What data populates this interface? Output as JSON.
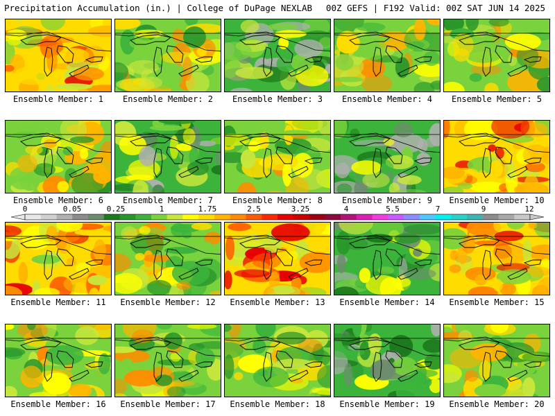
{
  "header": {
    "title_left": "Precipitation Accumulation (in.) | College of DuPage NEXLAB",
    "title_right": "00Z GEFS | F192 Valid: 00Z SAT JUN 14 2025"
  },
  "members": [
    {
      "label": "Ensemble Member: 1",
      "tone": "wet"
    },
    {
      "label": "Ensemble Member: 2",
      "tone": "mixed"
    },
    {
      "label": "Ensemble Member: 3",
      "tone": "dry"
    },
    {
      "label": "Ensemble Member: 4",
      "tone": "mixed"
    },
    {
      "label": "Ensemble Member: 5",
      "tone": "mixed"
    },
    {
      "label": "Ensemble Member: 6",
      "tone": "mixed"
    },
    {
      "label": "Ensemble Member: 7",
      "tone": "dry"
    },
    {
      "label": "Ensemble Member: 8",
      "tone": "mixed"
    },
    {
      "label": "Ensemble Member: 9",
      "tone": "dry"
    },
    {
      "label": "Ensemble Member: 10",
      "tone": "wet"
    },
    {
      "label": "Ensemble Member: 11",
      "tone": "wet"
    },
    {
      "label": "Ensemble Member: 12",
      "tone": "mixed"
    },
    {
      "label": "Ensemble Member: 13",
      "tone": "wet"
    },
    {
      "label": "Ensemble Member: 14",
      "tone": "dry"
    },
    {
      "label": "Ensemble Member: 15",
      "tone": "wet"
    },
    {
      "label": "Ensemble Member: 16",
      "tone": "mixed"
    },
    {
      "label": "Ensemble Member: 17",
      "tone": "mixed"
    },
    {
      "label": "Ensemble Member: 18",
      "tone": "mixed"
    },
    {
      "label": "Ensemble Member: 19",
      "tone": "dry"
    },
    {
      "label": "Ensemble Member: 20",
      "tone": "mixed"
    }
  ],
  "legend": {
    "labels": [
      "0",
      "0.05",
      "0.25",
      "1",
      "1.75",
      "2.5",
      "3.25",
      "4",
      "5.5",
      "7",
      "9",
      "12"
    ],
    "colors": [
      "#e8e8e8",
      "#d0d0d0",
      "#b0b0b0",
      "#8c8c8c",
      "#6e8c6e",
      "#1e7a1e",
      "#2a962a",
      "#3cb43c",
      "#7ad23c",
      "#c8e63c",
      "#ffff00",
      "#ffdc00",
      "#ffb400",
      "#ff8c00",
      "#ff5a00",
      "#ff2800",
      "#e60000",
      "#c80000",
      "#a00014",
      "#8c0a3c",
      "#b4147a",
      "#dc1eb4",
      "#f03cdc",
      "#c85aff",
      "#8c8cff",
      "#50c8ff",
      "#00f0f0",
      "#28d2c8",
      "#3cb4b4",
      "#8c8c8c",
      "#a8a8a8",
      "#c8c8c8"
    ]
  }
}
